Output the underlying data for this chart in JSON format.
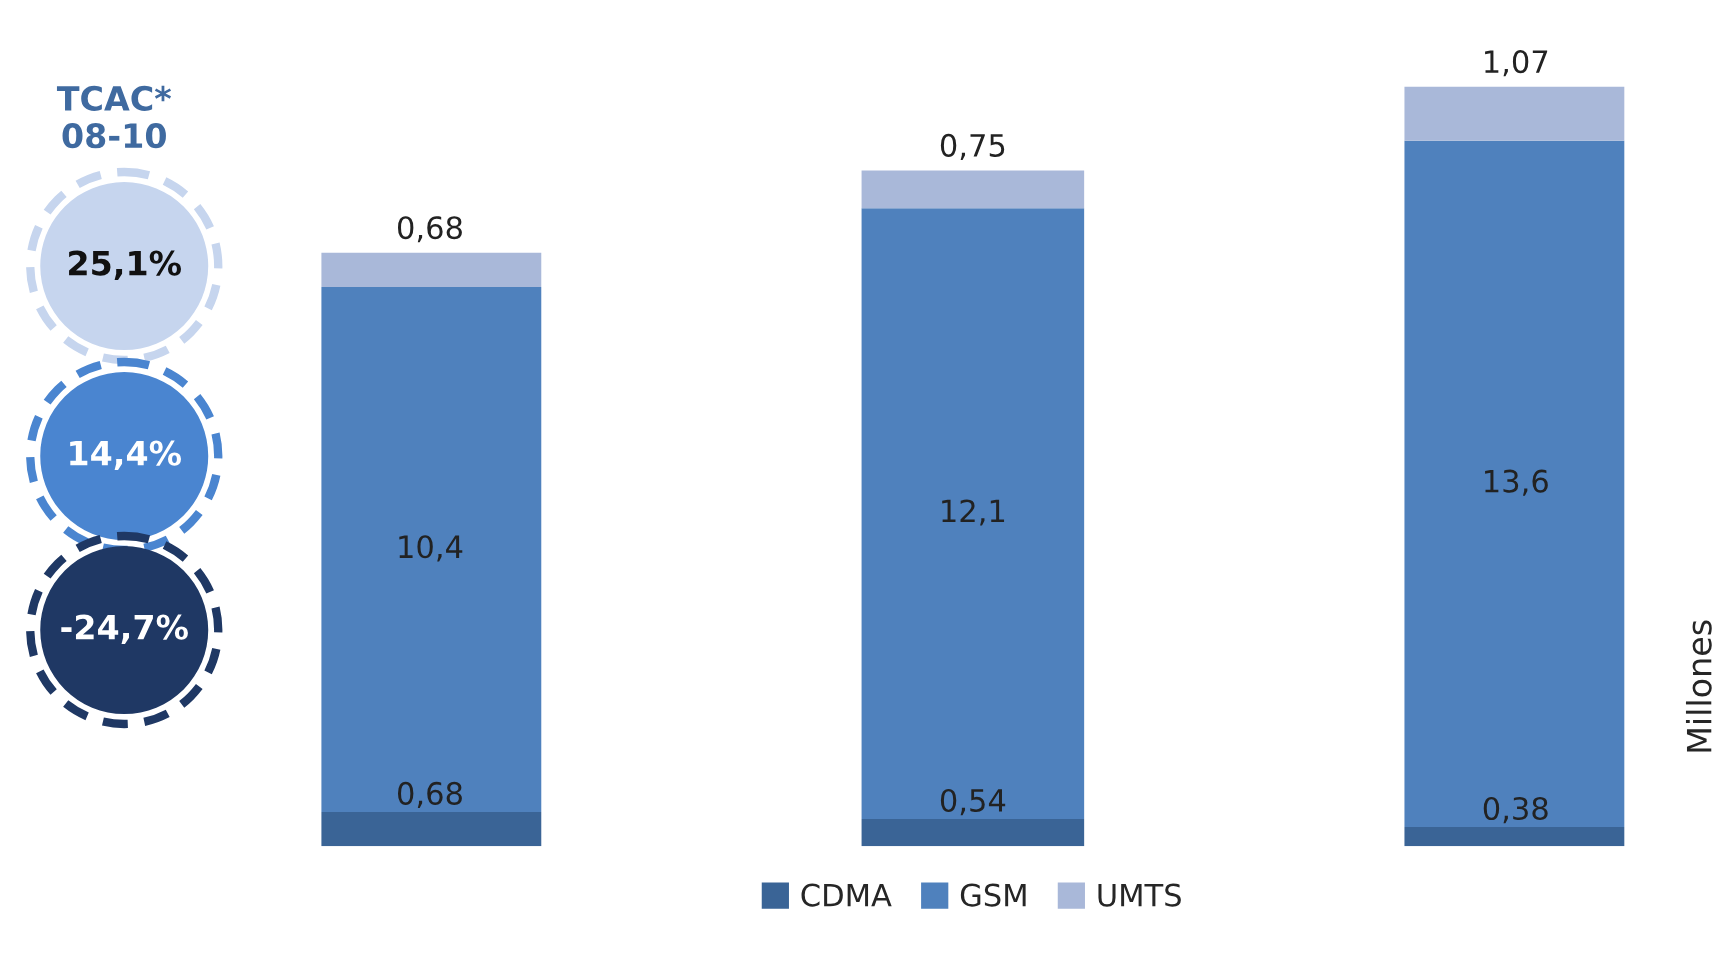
{
  "chart_data": {
    "type": "bar",
    "stacked": true,
    "categories": [
      null,
      null,
      null
    ],
    "series": [
      {
        "name": "CDMA",
        "color": "#3a6496",
        "values": [
          0.68,
          0.54,
          0.38
        ],
        "value_labels": [
          "0,68",
          "0,54",
          "0,38"
        ]
      },
      {
        "name": "GSM",
        "color": "#4f81bd",
        "values": [
          10.4,
          12.1,
          13.6
        ],
        "value_labels": [
          "10,4",
          "12,1",
          "13,6"
        ]
      },
      {
        "name": "UMTS",
        "color": "#a9b8d9",
        "values": [
          0.68,
          0.75,
          1.07
        ],
        "value_labels": [
          "0,68",
          "0,75",
          "1,07"
        ]
      }
    ],
    "legend": "bottom",
    "ylabel": "Millones",
    "grid": false,
    "annotations": [
      "TCAC*\n08-10",
      "25,1%",
      "14,4%",
      "-24,7%"
    ]
  }
}
